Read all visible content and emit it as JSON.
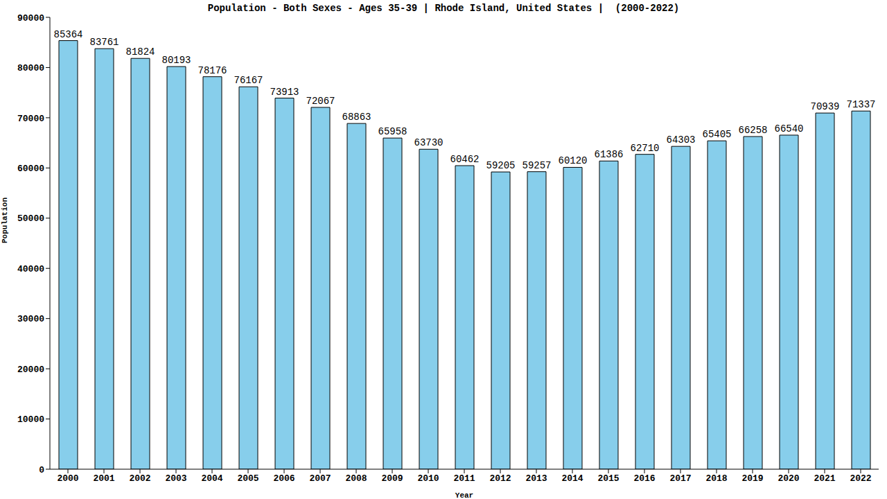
{
  "chart_data": {
    "type": "bar",
    "title": "Population - Both Sexes - Ages 35-39 | Rhode Island, United States |  (2000-2022)",
    "x_label": "Year",
    "y_label": "Population",
    "categories": [
      "2000",
      "2001",
      "2002",
      "2003",
      "2004",
      "2005",
      "2006",
      "2007",
      "2008",
      "2009",
      "2010",
      "2011",
      "2012",
      "2013",
      "2014",
      "2015",
      "2016",
      "2017",
      "2018",
      "2019",
      "2020",
      "2021",
      "2022"
    ],
    "values": [
      85364,
      83761,
      81824,
      80193,
      78176,
      76167,
      73913,
      72067,
      68863,
      65958,
      63730,
      60462,
      59205,
      59257,
      60120,
      61386,
      62710,
      64303,
      65405,
      66258,
      66540,
      70939,
      71337
    ],
    "color": "#87ceeb",
    "ylim": [
      0,
      90000
    ],
    "yticks": [
      0,
      10000,
      20000,
      30000,
      40000,
      50000,
      60000,
      70000,
      80000,
      90000
    ],
    "grid": false,
    "data_labels": true
  }
}
